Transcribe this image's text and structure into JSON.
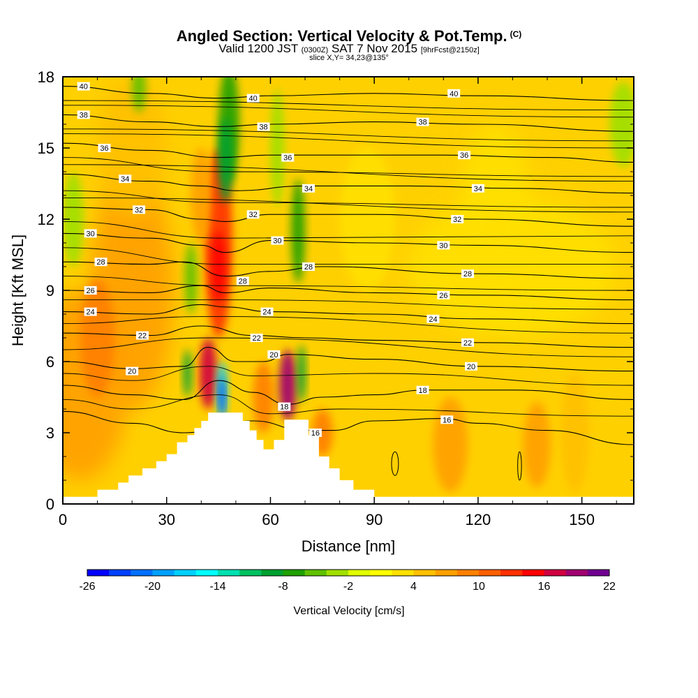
{
  "header": {
    "title": "Angled Section: Vertical Velocity & Pot.Temp.",
    "copyright": "(C)",
    "subtitle_main_a": "Valid 1200 JST",
    "subtitle_utc": "(0300Z)",
    "subtitle_main_b": "SAT 7 Nov 2015",
    "subtitle_fcst": "[9hrFcst@2150z]",
    "slice": "slice X,Y= 34,23@135°"
  },
  "chart_data": {
    "type": "heatmap",
    "xlabel": "Distance [nm]",
    "ylabel": "Height [Kft MSL]",
    "xlim": [
      0,
      165
    ],
    "ylim": [
      0,
      18
    ],
    "x_ticks": [
      "0",
      "30",
      "60",
      "90",
      "120",
      "150"
    ],
    "y_ticks": [
      "0",
      "3",
      "6",
      "9",
      "12",
      "15",
      "18"
    ],
    "field": "Vertical Velocity",
    "contour_field": "Potential Temperature",
    "terrain_profile": [
      [
        0,
        0.3
      ],
      [
        10,
        0.3
      ],
      [
        10,
        0.6
      ],
      [
        16,
        0.6
      ],
      [
        16,
        0.9
      ],
      [
        19,
        0.9
      ],
      [
        19,
        1.2
      ],
      [
        23,
        1.2
      ],
      [
        23,
        1.5
      ],
      [
        27,
        1.5
      ],
      [
        27,
        1.8
      ],
      [
        30,
        1.8
      ],
      [
        30,
        2.1
      ],
      [
        33,
        2.1
      ],
      [
        33,
        2.6
      ],
      [
        36,
        2.6
      ],
      [
        36,
        2.9
      ],
      [
        38,
        2.9
      ],
      [
        38,
        3.2
      ],
      [
        40,
        3.2
      ],
      [
        40,
        3.5
      ],
      [
        42,
        3.5
      ],
      [
        42,
        3.85
      ],
      [
        52,
        3.85
      ],
      [
        52,
        3.5
      ],
      [
        54,
        3.5
      ],
      [
        54,
        3.1
      ],
      [
        56,
        3.1
      ],
      [
        56,
        2.7
      ],
      [
        58,
        2.7
      ],
      [
        58,
        2.3
      ],
      [
        61,
        2.3
      ],
      [
        61,
        2.7
      ],
      [
        64,
        2.7
      ],
      [
        64,
        3.55
      ],
      [
        71,
        3.55
      ],
      [
        71,
        2.9
      ],
      [
        74,
        2.9
      ],
      [
        74,
        2.0
      ],
      [
        77,
        2.0
      ],
      [
        77,
        1.5
      ],
      [
        80,
        1.5
      ],
      [
        80,
        1.0
      ],
      [
        84,
        1.0
      ],
      [
        84,
        0.6
      ],
      [
        90,
        0.6
      ],
      [
        90,
        0.3
      ],
      [
        165,
        0.3
      ]
    ],
    "velocity_regions": [
      {
        "x": 5,
        "y": 5,
        "rx": 14,
        "ry": 4,
        "value": 6
      },
      {
        "x": 20,
        "y": 9,
        "rx": 12,
        "ry": 5,
        "value": 6
      },
      {
        "x": 20,
        "y": 15,
        "rx": 10,
        "ry": 3,
        "value": 4
      },
      {
        "x": 45,
        "y": 11,
        "rx": 4,
        "ry": 4,
        "value": 12
      },
      {
        "x": 45,
        "y": 10,
        "rx": 2,
        "ry": 1.5,
        "value": 14
      },
      {
        "x": 40,
        "y": 13,
        "rx": 3,
        "ry": 2,
        "value": 6
      },
      {
        "x": 42,
        "y": 5.5,
        "rx": 2.5,
        "ry": 1.5,
        "value": 16
      },
      {
        "x": 58,
        "y": 4.5,
        "rx": 3,
        "ry": 1.5,
        "value": 8
      },
      {
        "x": 65,
        "y": 5,
        "rx": 2.5,
        "ry": 1.5,
        "value": 18
      },
      {
        "x": 75,
        "y": 3,
        "rx": 3,
        "ry": 1,
        "value": 8
      },
      {
        "x": 112,
        "y": 2.5,
        "rx": 5,
        "ry": 2,
        "value": 6
      },
      {
        "x": 137,
        "y": 2.5,
        "rx": 4,
        "ry": 1.8,
        "value": 6
      },
      {
        "x": 148,
        "y": 3,
        "rx": 4,
        "ry": 2.5,
        "value": 4
      },
      {
        "x": 130,
        "y": 10,
        "rx": 30,
        "ry": 3,
        "value": 2
      },
      {
        "x": 125,
        "y": 13,
        "rx": 10,
        "ry": 3,
        "value": 2
      },
      {
        "x": 88,
        "y": 12,
        "rx": 8,
        "ry": 3,
        "value": 3
      },
      {
        "x": 48,
        "y": 16,
        "rx": 3,
        "ry": 2.5,
        "value": -8
      },
      {
        "x": 47,
        "y": 14.5,
        "rx": 2,
        "ry": 1.8,
        "value": -10
      },
      {
        "x": 68,
        "y": 11.5,
        "rx": 2,
        "ry": 2.2,
        "value": -8
      },
      {
        "x": 37,
        "y": 9.5,
        "rx": 1.8,
        "ry": 1.5,
        "value": -6
      },
      {
        "x": 36,
        "y": 5.5,
        "rx": 1.2,
        "ry": 1,
        "value": -10
      },
      {
        "x": 46,
        "y": 4.8,
        "rx": 1.5,
        "ry": 1.2,
        "value": -18
      },
      {
        "x": 46,
        "y": 4.5,
        "rx": 0.8,
        "ry": 0.8,
        "value": -24
      },
      {
        "x": 69,
        "y": 5.5,
        "rx": 1.2,
        "ry": 1.2,
        "value": -10
      },
      {
        "x": 3,
        "y": 12,
        "rx": 3,
        "ry": 2,
        "value": -4
      },
      {
        "x": 162,
        "y": 16,
        "rx": 4,
        "ry": 1.8,
        "value": -4
      },
      {
        "x": 22,
        "y": 17.5,
        "rx": 2,
        "ry": 1,
        "value": -6
      },
      {
        "x": 62,
        "y": 15,
        "rx": 2,
        "ry": 2.5,
        "value": -4
      },
      {
        "x": 10,
        "y": 7,
        "rx": 5,
        "ry": 2.5,
        "value": 8
      }
    ],
    "isentropes": [
      {
        "label": "16",
        "values": [
          [
            0,
            3.9
          ],
          [
            20,
            3.4
          ],
          [
            35,
            3.0
          ],
          [
            55,
            3.5
          ],
          [
            70,
            3.1
          ],
          [
            78,
            3.1
          ],
          [
            90,
            3.5
          ],
          [
            110,
            3.6
          ],
          [
            120,
            3.4
          ],
          [
            140,
            3.1
          ],
          [
            165,
            2.5
          ]
        ],
        "label_at": [
          [
            73,
            3.0
          ],
          [
            111,
            3.55
          ]
        ]
      },
      {
        "label": "18",
        "values": [
          [
            0,
            5.0
          ],
          [
            20,
            4.6
          ],
          [
            35,
            4.4
          ],
          [
            45,
            5.2
          ],
          [
            55,
            4.7
          ],
          [
            65,
            4.2
          ],
          [
            75,
            4.5
          ],
          [
            90,
            4.6
          ],
          [
            105,
            4.8
          ],
          [
            130,
            4.8
          ],
          [
            165,
            4.4
          ]
        ],
        "label_at": [
          [
            64,
            4.1
          ],
          [
            104,
            4.8
          ]
        ]
      },
      {
        "label": "20",
        "values": [
          [
            0,
            6.0
          ],
          [
            20,
            5.7
          ],
          [
            35,
            5.8
          ],
          [
            42,
            6.6
          ],
          [
            50,
            6.0
          ],
          [
            58,
            6.0
          ],
          [
            65,
            6.3
          ],
          [
            90,
            6.1
          ],
          [
            120,
            5.8
          ],
          [
            165,
            5.6
          ]
        ],
        "label_at": [
          [
            20,
            5.6
          ],
          [
            61,
            6.3
          ],
          [
            118,
            5.8
          ]
        ]
      },
      {
        "label": "22",
        "values": [
          [
            0,
            7.2
          ],
          [
            25,
            7.1
          ],
          [
            40,
            7.5
          ],
          [
            55,
            7.1
          ],
          [
            70,
            7.0
          ],
          [
            90,
            6.9
          ],
          [
            120,
            6.8
          ],
          [
            165,
            6.6
          ]
        ],
        "label_at": [
          [
            23,
            7.1
          ],
          [
            56,
            7.0
          ],
          [
            117,
            6.8
          ]
        ]
      },
      {
        "label": "24",
        "values": [
          [
            0,
            8.1
          ],
          [
            25,
            8.0
          ],
          [
            40,
            8.4
          ],
          [
            47,
            8.3
          ],
          [
            60,
            8.1
          ],
          [
            90,
            8.0
          ],
          [
            120,
            7.8
          ],
          [
            165,
            7.6
          ]
        ],
        "label_at": [
          [
            8,
            8.1
          ],
          [
            59,
            8.1
          ],
          [
            107,
            7.8
          ]
        ]
      },
      {
        "label": "26",
        "values": [
          [
            0,
            9.0
          ],
          [
            25,
            8.9
          ],
          [
            40,
            9.2
          ],
          [
            47,
            8.9
          ],
          [
            60,
            9.1
          ],
          [
            90,
            8.9
          ],
          [
            120,
            8.8
          ],
          [
            165,
            8.6
          ]
        ],
        "label_at": [
          [
            8,
            9.0
          ],
          [
            110,
            8.8
          ]
        ]
      },
      {
        "label": "28",
        "values": [
          [
            0,
            10.2
          ],
          [
            25,
            10.1
          ],
          [
            35,
            10.2
          ],
          [
            47,
            9.6
          ],
          [
            60,
            9.8
          ],
          [
            75,
            10.0
          ],
          [
            120,
            9.7
          ],
          [
            165,
            9.5
          ]
        ],
        "label_at": [
          [
            11,
            10.2
          ],
          [
            52,
            9.4
          ],
          [
            71,
            10.0
          ],
          [
            117,
            9.7
          ]
        ]
      },
      {
        "label": "30",
        "values": [
          [
            0,
            11.4
          ],
          [
            25,
            11.2
          ],
          [
            40,
            10.9
          ],
          [
            47,
            10.6
          ],
          [
            60,
            11.1
          ],
          [
            90,
            11.0
          ],
          [
            120,
            10.9
          ],
          [
            165,
            10.6
          ]
        ],
        "label_at": [
          [
            8,
            11.4
          ],
          [
            62,
            11.1
          ],
          [
            110,
            10.9
          ]
        ]
      },
      {
        "label": "32",
        "values": [
          [
            0,
            12.5
          ],
          [
            25,
            12.4
          ],
          [
            40,
            12.0
          ],
          [
            47,
            11.9
          ],
          [
            60,
            12.2
          ],
          [
            90,
            12.2
          ],
          [
            120,
            12.0
          ],
          [
            165,
            11.7
          ]
        ],
        "label_at": [
          [
            22,
            12.4
          ],
          [
            55,
            12.2
          ],
          [
            114,
            12.0
          ]
        ]
      },
      {
        "label": "34",
        "values": [
          [
            0,
            13.9
          ],
          [
            25,
            13.6
          ],
          [
            40,
            13.4
          ],
          [
            50,
            13.2
          ],
          [
            70,
            13.4
          ],
          [
            100,
            13.4
          ],
          [
            130,
            13.3
          ],
          [
            165,
            13.1
          ]
        ],
        "label_at": [
          [
            18,
            13.7
          ],
          [
            71,
            13.3
          ],
          [
            120,
            13.3
          ]
        ]
      },
      {
        "label": "36",
        "values": [
          [
            0,
            15.2
          ],
          [
            25,
            14.9
          ],
          [
            45,
            14.6
          ],
          [
            60,
            14.7
          ],
          [
            80,
            14.7
          ],
          [
            110,
            14.7
          ],
          [
            140,
            14.6
          ],
          [
            165,
            14.4
          ]
        ],
        "label_at": [
          [
            12,
            15.0
          ],
          [
            65,
            14.6
          ],
          [
            116,
            14.7
          ]
        ]
      },
      {
        "label": "38",
        "values": [
          [
            0,
            16.4
          ],
          [
            25,
            16.1
          ],
          [
            45,
            15.9
          ],
          [
            60,
            16.0
          ],
          [
            90,
            16.1
          ],
          [
            120,
            16.0
          ],
          [
            165,
            15.7
          ]
        ],
        "label_at": [
          [
            6,
            16.4
          ],
          [
            58,
            15.9
          ],
          [
            104,
            16.1
          ]
        ]
      },
      {
        "label": "40",
        "values": [
          [
            0,
            17.6
          ],
          [
            25,
            17.3
          ],
          [
            45,
            17.1
          ],
          [
            60,
            17.2
          ],
          [
            90,
            17.3
          ],
          [
            120,
            17.2
          ],
          [
            165,
            17.0
          ]
        ],
        "label_at": [
          [
            6,
            17.6
          ],
          [
            55,
            17.1
          ],
          [
            113,
            17.3
          ]
        ]
      }
    ],
    "secondary_contours": [
      [
        [
          0,
          17.0
        ],
        [
          165,
          16.6
        ]
      ],
      [
        [
          0,
          16.8
        ],
        [
          165,
          16.3
        ]
      ],
      [
        [
          0,
          15.8
        ],
        [
          165,
          15.3
        ]
      ],
      [
        [
          0,
          15.6
        ],
        [
          165,
          15.0
        ]
      ],
      [
        [
          0,
          14.6
        ],
        [
          45,
          14.0
        ],
        [
          165,
          13.8
        ]
      ],
      [
        [
          0,
          14.3
        ],
        [
          165,
          13.6
        ]
      ],
      [
        [
          0,
          13.2
        ],
        [
          47,
          12.7
        ],
        [
          165,
          12.5
        ]
      ],
      [
        [
          0,
          12.9
        ],
        [
          165,
          12.3
        ]
      ],
      [
        [
          0,
          11.9
        ],
        [
          47,
          11.2
        ],
        [
          165,
          11.3
        ]
      ],
      [
        [
          0,
          10.8
        ],
        [
          47,
          10.1
        ],
        [
          165,
          10.1
        ]
      ],
      [
        [
          0,
          9.6
        ],
        [
          47,
          9.2
        ],
        [
          165,
          9.0
        ]
      ],
      [
        [
          0,
          8.6
        ],
        [
          47,
          8.6
        ],
        [
          165,
          8.2
        ]
      ],
      [
        [
          0,
          7.6
        ],
        [
          42,
          7.9
        ],
        [
          165,
          7.2
        ]
      ],
      [
        [
          0,
          6.5
        ],
        [
          42,
          7.0
        ],
        [
          165,
          6.2
        ]
      ],
      [
        [
          0,
          5.5
        ],
        [
          20,
          5.2
        ],
        [
          42,
          5.8
        ],
        [
          55,
          5.4
        ],
        [
          90,
          5.5
        ],
        [
          165,
          5.0
        ]
      ],
      [
        [
          0,
          4.4
        ],
        [
          20,
          4.0
        ],
        [
          45,
          4.6
        ],
        [
          60,
          3.8
        ],
        [
          80,
          4.0
        ],
        [
          165,
          3.7
        ]
      ]
    ],
    "closed_contours": [
      [
        96,
        1.2,
        2.2,
        1.0
      ],
      [
        132,
        1.0,
        2.2,
        0.55
      ]
    ],
    "colorbar": {
      "label": "Vertical Velocity [cm/s]",
      "min": -26,
      "max": 22,
      "step": 2,
      "tick_labels": [
        "-26",
        "-20",
        "-14",
        "-8",
        "-2",
        "4",
        "10",
        "16",
        "22"
      ],
      "colors": [
        "#0000ff",
        "#0040ff",
        "#0070ff",
        "#00a0ff",
        "#00d0ff",
        "#00ffff",
        "#00e0b0",
        "#00c060",
        "#00a030",
        "#20a000",
        "#60c000",
        "#a0e000",
        "#e0ff00",
        "#ffff00",
        "#ffe000",
        "#ffc000",
        "#ffa000",
        "#ff8000",
        "#ff6000",
        "#ff3000",
        "#ff0000",
        "#d00040",
        "#a00070",
        "#700090"
      ]
    }
  }
}
